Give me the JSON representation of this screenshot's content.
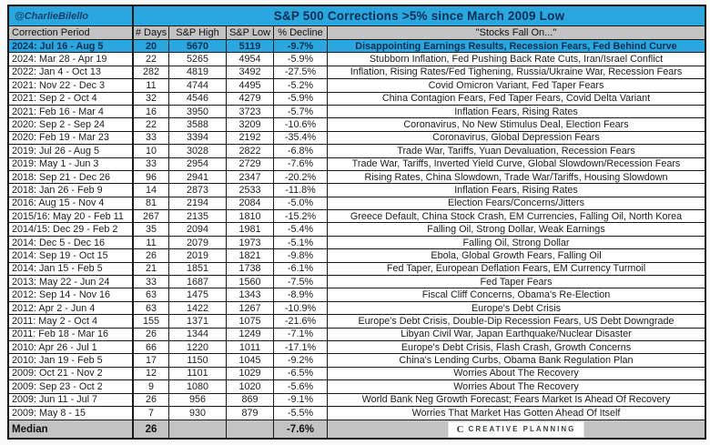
{
  "header": {
    "handle": "@CharlieBilello",
    "title": "S&P 500 Corrections >5% since March 2009 Low"
  },
  "columns": {
    "period": "Correction Period",
    "days": "# Days",
    "high": "S&P High",
    "low": "S&P Low",
    "decline": "% Decline",
    "reason": "\"Stocks Fall On...\""
  },
  "chart_data": {
    "type": "table",
    "title": "S&P 500 Corrections >5% since March 2009 Low",
    "columns": [
      "Correction Period",
      "# Days",
      "S&P High",
      "S&P Low",
      "% Decline",
      "\"Stocks Fall On...\""
    ],
    "rows": [
      {
        "period": "2024: Jul 16 - Aug 5",
        "days": 20,
        "high": 5670,
        "low": 5119,
        "decline": "-9.7%",
        "reason": "Disappointing Earnings Results, Recession Fears, Fed Behind Curve",
        "highlighted": true
      },
      {
        "period": "2024: Mar 28 - Apr 19",
        "days": 22,
        "high": 5265,
        "low": 4954,
        "decline": "-5.9%",
        "reason": "Stubborn Inflation, Fed Pushing Back Rate Cuts, Iran/Israel Conflict"
      },
      {
        "period": "2022: Jan 4 - Oct 13",
        "days": 282,
        "high": 4819,
        "low": 3492,
        "decline": "-27.5%",
        "reason": "Inflation, Rising Rates/Fed Tighening, Russia/Ukraine War, Recession Fears"
      },
      {
        "period": "2021: Nov 22 - Dec 3",
        "days": 11,
        "high": 4744,
        "low": 4495,
        "decline": "-5.2%",
        "reason": "Covid Omicron Variant, Fed Taper Fears"
      },
      {
        "period": "2021: Sep 2 - Oct 4",
        "days": 32,
        "high": 4546,
        "low": 4279,
        "decline": "-5.9%",
        "reason": "China Contagion Fears, Fed Taper Fears, Covid Delta Variant"
      },
      {
        "period": "2021: Feb 16 - Mar 4",
        "days": 16,
        "high": 3950,
        "low": 3723,
        "decline": "-5.7%",
        "reason": "Inflation Fears, Rising Rates"
      },
      {
        "period": "2020: Sep 2 - Sep 24",
        "days": 22,
        "high": 3588,
        "low": 3209,
        "decline": "-10.6%",
        "reason": "Coronavirus, No New Stimulus Deal, Election Fears"
      },
      {
        "period": "2020: Feb 19 - Mar 23",
        "days": 33,
        "high": 3394,
        "low": 2192,
        "decline": "-35.4%",
        "reason": "Coronavirus, Global Depression Fears"
      },
      {
        "period": "2019: Jul 26 - Aug 5",
        "days": 10,
        "high": 3028,
        "low": 2822,
        "decline": "-6.8%",
        "reason": "Trade War, Tariffs, Yuan Devaluation, Recession Fears"
      },
      {
        "period": "2019: May 1 - Jun 3",
        "days": 33,
        "high": 2954,
        "low": 2729,
        "decline": "-7.6%",
        "reason": "Trade War, Tariffs, Inverted Yield Curve, Global Slowdown/Recession Fears"
      },
      {
        "period": "2018: Sep 21 - Dec 26",
        "days": 96,
        "high": 2941,
        "low": 2347,
        "decline": "-20.2%",
        "reason": "Rising Rates, China Slowdown, Trade War/Tariffs, Housing Slowdown"
      },
      {
        "period": "2018: Jan 26 - Feb 9",
        "days": 14,
        "high": 2873,
        "low": 2533,
        "decline": "-11.8%",
        "reason": "Inflation Fears, Rising Rates"
      },
      {
        "period": "2016: Aug 15 - Nov 4",
        "days": 81,
        "high": 2194,
        "low": 2084,
        "decline": "-5.0%",
        "reason": "Election Fears/Concerns/Jitters"
      },
      {
        "period": "2015/16: May 20 - Feb 11",
        "days": 267,
        "high": 2135,
        "low": 1810,
        "decline": "-15.2%",
        "reason": "Greece Default, China Stock Crash, EM Currencies, Falling Oil, North Korea"
      },
      {
        "period": "2014/15: Dec 29 - Feb 2",
        "days": 35,
        "high": 2094,
        "low": 1981,
        "decline": "-5.4%",
        "reason": "Falling Oil, Strong Dollar, Weak Earnings"
      },
      {
        "period": "2014: Dec 5 - Dec 16",
        "days": 11,
        "high": 2079,
        "low": 1973,
        "decline": "-5.1%",
        "reason": "Falling Oil, Strong Dollar"
      },
      {
        "period": "2014: Sep 19 - Oct 15",
        "days": 26,
        "high": 2019,
        "low": 1821,
        "decline": "-9.8%",
        "reason": "Ebola, Global Growth Fears, Falling Oil"
      },
      {
        "period": "2014: Jan 15 - Feb 5",
        "days": 21,
        "high": 1851,
        "low": 1738,
        "decline": "-6.1%",
        "reason": "Fed Taper, European Deflation Fears, EM Currency Turmoil"
      },
      {
        "period": "2013: May 22 - Jun 24",
        "days": 33,
        "high": 1687,
        "low": 1560,
        "decline": "-7.5%",
        "reason": "Fed Taper Fears"
      },
      {
        "period": "2012: Sep 14 - Nov 16",
        "days": 63,
        "high": 1475,
        "low": 1343,
        "decline": "-8.9%",
        "reason": "Fiscal Cliff Concerns, Obama's Re-Election"
      },
      {
        "period": "2012: Apr 2 - Jun 4",
        "days": 63,
        "high": 1422,
        "low": 1267,
        "decline": "-10.9%",
        "reason": "Europe's Debt Crisis"
      },
      {
        "period": "2011: May 2 - Oct 4",
        "days": 155,
        "high": 1371,
        "low": 1075,
        "decline": "-21.6%",
        "reason": "Europe's Debt Crisis, Double-Dip Recession Fears, US Debt Downgrade"
      },
      {
        "period": "2011: Feb 18 - Mar 16",
        "days": 26,
        "high": 1344,
        "low": 1249,
        "decline": "-7.1%",
        "reason": "Libyan Civil War, Japan Earthquake/Nuclear Disaster"
      },
      {
        "period": "2010: Apr 26 - Jul 1",
        "days": 66,
        "high": 1220,
        "low": 1011,
        "decline": "-17.1%",
        "reason": "Europe's Debt Crisis, Flash Crash, Growth Concerns"
      },
      {
        "period": "2010: Jan 19 - Feb 5",
        "days": 17,
        "high": 1150,
        "low": 1045,
        "decline": "-9.2%",
        "reason": "China's Lending Curbs, Obama Bank Regulation Plan"
      },
      {
        "period": "2009: Oct 21 - Nov 2",
        "days": 12,
        "high": 1101,
        "low": 1029,
        "decline": "-6.5%",
        "reason": "Worries About The Recovery"
      },
      {
        "period": "2009: Sep 23 - Oct 2",
        "days": 9,
        "high": 1080,
        "low": 1020,
        "decline": "-5.6%",
        "reason": "Worries About The Recovery"
      },
      {
        "period": "2009: Jun 11 - Jul 7",
        "days": 26,
        "high": 956,
        "low": 869,
        "decline": "-9.1%",
        "reason": "World Bank Neg Growth Forecast; Fears Market Is Ahead Of Recovery"
      },
      {
        "period": "2009: May 8 - 15",
        "days": 7,
        "high": 930,
        "low": 879,
        "decline": "-5.5%",
        "reason": "Worries That Market Has Gotten Ahead Of Itself"
      }
    ],
    "median": {
      "label": "Median",
      "days": 26,
      "decline": "-7.6%"
    }
  },
  "footer": {
    "logo_text": "CREATIVE PLANNING",
    "logo_icon": "C"
  },
  "colors": {
    "accent_blue": "#2ba7e0",
    "header_gray": "#c3c3c3",
    "navy_text": "#0b2d52"
  }
}
